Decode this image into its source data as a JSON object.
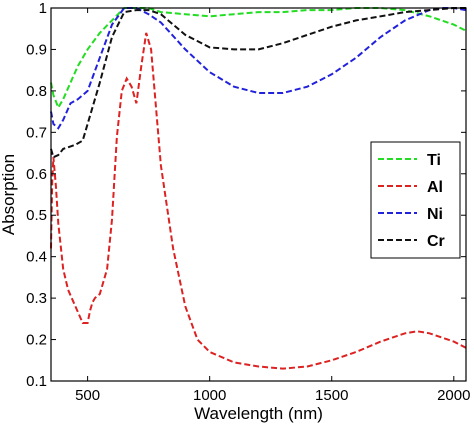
{
  "chart_data": {
    "type": "line",
    "title": "",
    "xlabel": "Wavelength (nm)",
    "ylabel": "Absorption",
    "xlim": [
      350,
      2050
    ],
    "ylim": [
      0.1,
      1.0
    ],
    "xticks": [
      500,
      1000,
      1500,
      2000
    ],
    "yticks": [
      0.1,
      0.2,
      0.3,
      0.4,
      0.5,
      0.6,
      0.7,
      0.8,
      0.9,
      1.0
    ],
    "xtick_labels": [
      "500",
      "1000",
      "1500",
      "2000"
    ],
    "ytick_labels": [
      "0.1",
      "0.2",
      "0.3",
      "0.4",
      "0.5",
      "0.6",
      "0.7",
      "0.8",
      "0.9",
      "1"
    ],
    "grid": false,
    "legend_position": "right",
    "series": [
      {
        "name": "Ti",
        "color": "#22dd22",
        "x": [
          350,
          360,
          380,
          400,
          430,
          460,
          500,
          550,
          600,
          650,
          700,
          750,
          800,
          900,
          1000,
          1100,
          1200,
          1300,
          1400,
          1500,
          1600,
          1700,
          1800,
          1900,
          2000,
          2050
        ],
        "y": [
          0.82,
          0.79,
          0.76,
          0.78,
          0.82,
          0.86,
          0.9,
          0.94,
          0.97,
          1.0,
          1.0,
          1.0,
          0.99,
          0.985,
          0.98,
          0.985,
          0.99,
          0.99,
          0.995,
          0.995,
          1.0,
          1.0,
          0.995,
          0.98,
          0.96,
          0.945
        ]
      },
      {
        "name": "Al",
        "color": "#dd2222",
        "x": [
          350,
          355,
          360,
          370,
          380,
          400,
          420,
          450,
          480,
          500,
          510,
          520,
          530,
          550,
          580,
          600,
          620,
          640,
          660,
          680,
          700,
          720,
          740,
          760,
          780,
          800,
          850,
          900,
          950,
          1000,
          1100,
          1200,
          1300,
          1400,
          1500,
          1600,
          1700,
          1800,
          1850,
          1900,
          2000,
          2050
        ],
        "y": [
          0.42,
          0.58,
          0.64,
          0.57,
          0.48,
          0.37,
          0.32,
          0.28,
          0.24,
          0.24,
          0.27,
          0.29,
          0.3,
          0.31,
          0.37,
          0.49,
          0.69,
          0.8,
          0.83,
          0.81,
          0.77,
          0.86,
          0.94,
          0.9,
          0.76,
          0.62,
          0.42,
          0.28,
          0.2,
          0.17,
          0.145,
          0.135,
          0.13,
          0.135,
          0.15,
          0.17,
          0.195,
          0.215,
          0.22,
          0.215,
          0.195,
          0.18
        ]
      },
      {
        "name": "Ni",
        "color": "#2222dd",
        "x": [
          350,
          360,
          380,
          400,
          430,
          460,
          500,
          550,
          600,
          650,
          700,
          750,
          800,
          900,
          1000,
          1100,
          1200,
          1300,
          1400,
          1500,
          1600,
          1700,
          1800,
          1900,
          1950,
          2000,
          2050
        ],
        "y": [
          0.75,
          0.72,
          0.71,
          0.73,
          0.77,
          0.78,
          0.8,
          0.88,
          0.96,
          1.0,
          1.0,
          0.985,
          0.965,
          0.9,
          0.845,
          0.81,
          0.795,
          0.795,
          0.81,
          0.84,
          0.88,
          0.93,
          0.97,
          0.995,
          1.0,
          1.0,
          0.995
        ]
      },
      {
        "name": "Cr",
        "color": "#111111",
        "x": [
          350,
          360,
          380,
          400,
          450,
          480,
          500,
          550,
          600,
          650,
          700,
          750,
          800,
          900,
          1000,
          1100,
          1200,
          1300,
          1400,
          1500,
          1600,
          1700,
          1800,
          1900,
          2000,
          2050
        ],
        "y": [
          0.66,
          0.64,
          0.645,
          0.66,
          0.67,
          0.68,
          0.72,
          0.82,
          0.93,
          0.99,
          0.995,
          0.995,
          0.985,
          0.935,
          0.905,
          0.9,
          0.9,
          0.915,
          0.935,
          0.955,
          0.97,
          0.98,
          0.99,
          0.995,
          1.0,
          1.0
        ]
      }
    ]
  }
}
